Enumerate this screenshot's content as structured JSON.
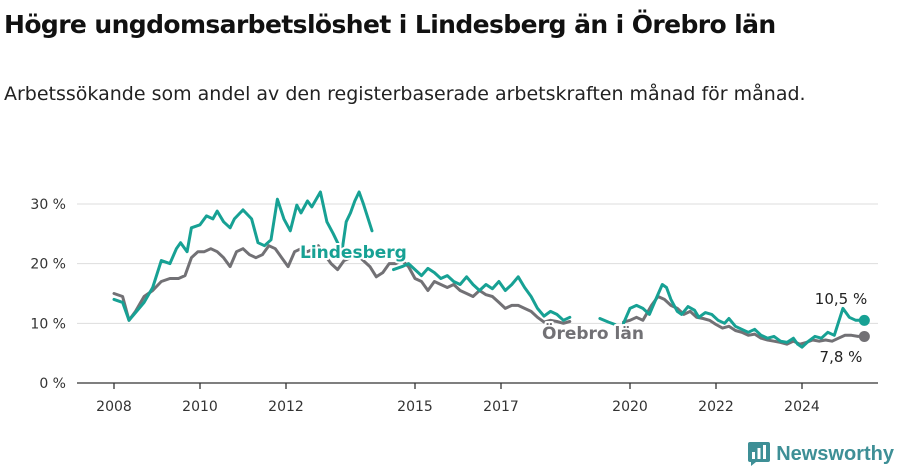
{
  "title": "Högre ungdomsarbetslöshet i Lindesberg än i Örebro län",
  "subtitle": "Arbetssökande som andel av den registerbaserade arbetskraften månad för månad.",
  "brand": "Newsworthy",
  "colors": {
    "lindesberg": "#17a194",
    "orebro": "#727175",
    "grid": "#dddddd",
    "axis": "#333333"
  },
  "chart_data": {
    "type": "line",
    "xlim": [
      2007.3,
      2025.9
    ],
    "ylim": [
      0,
      32
    ],
    "y_ticks": [
      0,
      10,
      20,
      30
    ],
    "y_tick_labels": [
      "0 %",
      "10 %",
      "20 %",
      "30 %"
    ],
    "x_ticks": [
      2008,
      2010,
      2012,
      2015,
      2017,
      2020,
      2022,
      2024
    ],
    "x_tick_labels": [
      "2008",
      "2010",
      "2012",
      "2015",
      "2017",
      "2020",
      "2022",
      "2024"
    ],
    "grid": true,
    "labels": {
      "lindesberg": "Lindesberg",
      "orebro": "Örebro län",
      "last_lindesberg": "10,5 %",
      "last_orebro": "7,8 %"
    },
    "series": [
      {
        "name": "Lindesberg",
        "points": [
          [
            2008.0,
            14.0
          ],
          [
            2008.2,
            13.5
          ],
          [
            2008.35,
            10.5
          ],
          [
            2008.5,
            11.8
          ],
          [
            2008.7,
            13.5
          ],
          [
            2008.9,
            16.0
          ],
          [
            2009.1,
            20.5
          ],
          [
            2009.3,
            20.0
          ],
          [
            2009.45,
            22.5
          ],
          [
            2009.55,
            23.5
          ],
          [
            2009.7,
            22.0
          ],
          [
            2009.8,
            26.0
          ],
          [
            2010.0,
            26.5
          ],
          [
            2010.15,
            28.0
          ],
          [
            2010.3,
            27.5
          ],
          [
            2010.4,
            28.8
          ],
          [
            2010.55,
            27.0
          ],
          [
            2010.7,
            26.0
          ],
          [
            2010.8,
            27.5
          ],
          [
            2011.0,
            29.0
          ],
          [
            2011.2,
            27.5
          ],
          [
            2011.35,
            23.5
          ],
          [
            2011.5,
            23.0
          ],
          [
            2011.65,
            24.0
          ],
          [
            2011.8,
            30.8
          ],
          [
            2011.95,
            27.5
          ],
          [
            2012.1,
            25.5
          ],
          [
            2012.25,
            29.8
          ],
          [
            2012.35,
            28.5
          ],
          [
            2012.5,
            30.5
          ],
          [
            2012.6,
            29.5
          ],
          [
            2012.8,
            32.0
          ],
          [
            2012.95,
            27.0
          ],
          [
            2013.1,
            25.0
          ],
          [
            2013.3,
            22.0
          ],
          [
            2013.4,
            27.0
          ],
          [
            2013.5,
            28.5
          ],
          [
            2013.6,
            30.5
          ],
          [
            2013.7,
            32.0
          ],
          [
            2013.8,
            30.0
          ],
          [
            2014.0,
            25.5
          ],
          null,
          [
            2014.5,
            19.0
          ],
          [
            2014.7,
            19.5
          ],
          [
            2014.85,
            20.0
          ],
          [
            2015.0,
            19.0
          ],
          [
            2015.15,
            18.0
          ],
          [
            2015.3,
            19.2
          ],
          [
            2015.45,
            18.5
          ],
          [
            2015.6,
            17.5
          ],
          [
            2015.75,
            18.0
          ],
          [
            2015.9,
            17.0
          ],
          [
            2016.05,
            16.5
          ],
          [
            2016.2,
            17.8
          ],
          [
            2016.35,
            16.5
          ],
          [
            2016.5,
            15.5
          ],
          [
            2016.65,
            16.5
          ],
          [
            2016.8,
            15.8
          ],
          [
            2016.95,
            17.0
          ],
          [
            2017.1,
            15.5
          ],
          [
            2017.25,
            16.5
          ],
          [
            2017.4,
            17.8
          ],
          [
            2017.55,
            16.0
          ],
          [
            2017.7,
            14.5
          ],
          [
            2017.85,
            12.5
          ],
          [
            2018.0,
            11.2
          ],
          [
            2018.15,
            12.0
          ],
          [
            2018.3,
            11.5
          ],
          [
            2018.45,
            10.5
          ],
          [
            2018.6,
            11.0
          ],
          null,
          [
            2019.3,
            10.8
          ],
          [
            2019.5,
            10.2
          ],
          [
            2019.65,
            9.8
          ],
          null,
          [
            2019.85,
            10.0
          ],
          [
            2020.0,
            12.5
          ],
          [
            2020.15,
            13.0
          ],
          [
            2020.3,
            12.5
          ],
          [
            2020.45,
            11.5
          ],
          [
            2020.6,
            14.0
          ],
          [
            2020.75,
            16.5
          ],
          [
            2020.85,
            16.0
          ],
          [
            2020.95,
            14.0
          ],
          [
            2021.1,
            12.0
          ],
          [
            2021.2,
            11.5
          ],
          [
            2021.35,
            12.8
          ],
          [
            2021.5,
            12.2
          ],
          [
            2021.6,
            11.0
          ],
          [
            2021.75,
            11.8
          ],
          [
            2021.9,
            11.5
          ],
          [
            2022.05,
            10.5
          ],
          [
            2022.2,
            10.0
          ],
          [
            2022.3,
            10.8
          ],
          [
            2022.45,
            9.5
          ],
          [
            2022.6,
            9.0
          ],
          [
            2022.75,
            8.5
          ],
          [
            2022.9,
            9.0
          ],
          [
            2023.05,
            8.0
          ],
          [
            2023.2,
            7.5
          ],
          [
            2023.35,
            7.8
          ],
          [
            2023.5,
            7.0
          ],
          [
            2023.65,
            6.8
          ],
          [
            2023.8,
            7.5
          ],
          [
            2023.9,
            6.5
          ],
          [
            2024.0,
            6.0
          ],
          [
            2024.15,
            7.0
          ],
          [
            2024.3,
            7.8
          ],
          [
            2024.45,
            7.5
          ],
          [
            2024.6,
            8.5
          ],
          [
            2024.75,
            8.0
          ],
          [
            2024.95,
            12.5
          ],
          [
            2025.1,
            11.0
          ],
          [
            2025.25,
            10.5
          ],
          [
            2025.45,
            10.5
          ]
        ]
      },
      {
        "name": "Örebro län",
        "points": [
          [
            2008.0,
            15.0
          ],
          [
            2008.2,
            14.5
          ],
          [
            2008.35,
            10.5
          ],
          [
            2008.5,
            12.0
          ],
          [
            2008.7,
            14.5
          ],
          [
            2008.9,
            15.5
          ],
          [
            2009.1,
            17.0
          ],
          [
            2009.3,
            17.5
          ],
          [
            2009.5,
            17.5
          ],
          [
            2009.65,
            18.0
          ],
          [
            2009.8,
            21.0
          ],
          [
            2009.95,
            22.0
          ],
          [
            2010.1,
            22.0
          ],
          [
            2010.25,
            22.5
          ],
          [
            2010.4,
            22.0
          ],
          [
            2010.55,
            21.0
          ],
          [
            2010.7,
            19.5
          ],
          [
            2010.85,
            22.0
          ],
          [
            2011.0,
            22.5
          ],
          [
            2011.15,
            21.5
          ],
          [
            2011.3,
            21.0
          ],
          [
            2011.45,
            21.5
          ],
          [
            2011.6,
            23.0
          ],
          [
            2011.75,
            22.5
          ],
          [
            2011.9,
            21.0
          ],
          [
            2012.05,
            19.5
          ],
          [
            2012.2,
            22.0
          ],
          [
            2012.35,
            22.5
          ],
          [
            2012.5,
            22.0
          ],
          [
            2012.65,
            22.5
          ],
          [
            2012.75,
            23.0
          ],
          [
            2012.9,
            21.5
          ],
          [
            2013.05,
            20.0
          ],
          [
            2013.2,
            19.0
          ],
          [
            2013.35,
            20.5
          ],
          [
            2013.5,
            21.0
          ],
          [
            2013.65,
            21.5
          ],
          [
            2013.8,
            20.5
          ],
          [
            2013.95,
            19.5
          ],
          [
            2014.1,
            17.8
          ],
          [
            2014.25,
            18.5
          ],
          [
            2014.4,
            20.0
          ],
          [
            2014.55,
            20.0
          ],
          [
            2014.7,
            20.5
          ],
          [
            2014.85,
            19.5
          ],
          [
            2015.0,
            17.5
          ],
          [
            2015.15,
            17.0
          ],
          [
            2015.3,
            15.5
          ],
          [
            2015.45,
            17.0
          ],
          [
            2015.6,
            16.5
          ],
          [
            2015.75,
            16.0
          ],
          [
            2015.9,
            16.5
          ],
          [
            2016.05,
            15.5
          ],
          [
            2016.2,
            15.0
          ],
          [
            2016.35,
            14.5
          ],
          [
            2016.5,
            15.5
          ],
          [
            2016.65,
            14.8
          ],
          [
            2016.8,
            14.5
          ],
          [
            2016.95,
            13.5
          ],
          [
            2017.1,
            12.5
          ],
          [
            2017.25,
            13.0
          ],
          [
            2017.4,
            13.0
          ],
          [
            2017.55,
            12.5
          ],
          [
            2017.7,
            12.0
          ],
          [
            2017.85,
            11.0
          ],
          [
            2018.0,
            10.2
          ],
          [
            2018.15,
            10.5
          ],
          [
            2018.3,
            10.3
          ],
          [
            2018.45,
            10.0
          ],
          [
            2018.6,
            10.3
          ],
          null,
          [
            2019.85,
            10.2
          ],
          [
            2020.0,
            10.5
          ],
          [
            2020.15,
            11.0
          ],
          [
            2020.3,
            10.5
          ],
          [
            2020.5,
            13.0
          ],
          [
            2020.65,
            14.5
          ],
          [
            2020.8,
            14.0
          ],
          [
            2020.95,
            13.0
          ],
          [
            2021.1,
            12.5
          ],
          [
            2021.25,
            11.5
          ],
          [
            2021.4,
            12.0
          ],
          [
            2021.55,
            11.0
          ],
          [
            2021.7,
            10.8
          ],
          [
            2021.85,
            10.5
          ],
          [
            2022.0,
            9.8
          ],
          [
            2022.15,
            9.2
          ],
          [
            2022.3,
            9.5
          ],
          [
            2022.45,
            8.8
          ],
          [
            2022.6,
            8.5
          ],
          [
            2022.75,
            8.0
          ],
          [
            2022.9,
            8.2
          ],
          [
            2023.05,
            7.5
          ],
          [
            2023.2,
            7.2
          ],
          [
            2023.35,
            7.0
          ],
          [
            2023.5,
            6.8
          ],
          [
            2023.65,
            6.5
          ],
          [
            2023.8,
            7.0
          ],
          [
            2023.95,
            6.5
          ],
          [
            2024.1,
            6.8
          ],
          [
            2024.25,
            7.2
          ],
          [
            2024.4,
            7.0
          ],
          [
            2024.55,
            7.2
          ],
          [
            2024.7,
            7.0
          ],
          [
            2024.85,
            7.5
          ],
          [
            2025.0,
            8.0
          ],
          [
            2025.15,
            8.0
          ],
          [
            2025.3,
            7.8
          ],
          [
            2025.45,
            7.8
          ]
        ]
      }
    ]
  }
}
